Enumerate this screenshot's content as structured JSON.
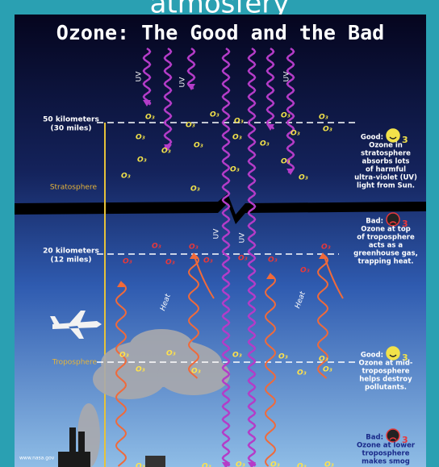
{
  "caption": "atmosfery",
  "title": "Ozone: The Good and the Bad",
  "altitudes": [
    {
      "label": "50 kilometers",
      "sub": "(30 miles)"
    },
    {
      "label": "20 kilometers",
      "sub": "(12 miles)"
    }
  ],
  "layers": [
    "Stratosphere",
    "Troposphere"
  ],
  "uv_label": "UV",
  "heat_label": "Heat",
  "ozone_label": "O₃",
  "face_subscript": "3",
  "notes": [
    {
      "heading": "Good:",
      "lines": [
        "Ozone in",
        "stratosphere",
        "absorbs lots",
        "of harmful",
        "ultra-violet (UV)",
        "light from Sun."
      ]
    },
    {
      "heading": "Bad:",
      "lines": [
        "Ozone at top",
        "of troposphere",
        "acts as a",
        "greenhouse gas,",
        "trapping heat."
      ]
    },
    {
      "heading": "Good:",
      "lines": [
        "Ozone at mid-",
        "troposphere",
        "helps destroy",
        "pollutants."
      ]
    },
    {
      "heading": "Bad:",
      "lines": [
        "Ozone at lower",
        "troposphere",
        "makes smog"
      ]
    }
  ],
  "footer": "www.nasa.gov"
}
